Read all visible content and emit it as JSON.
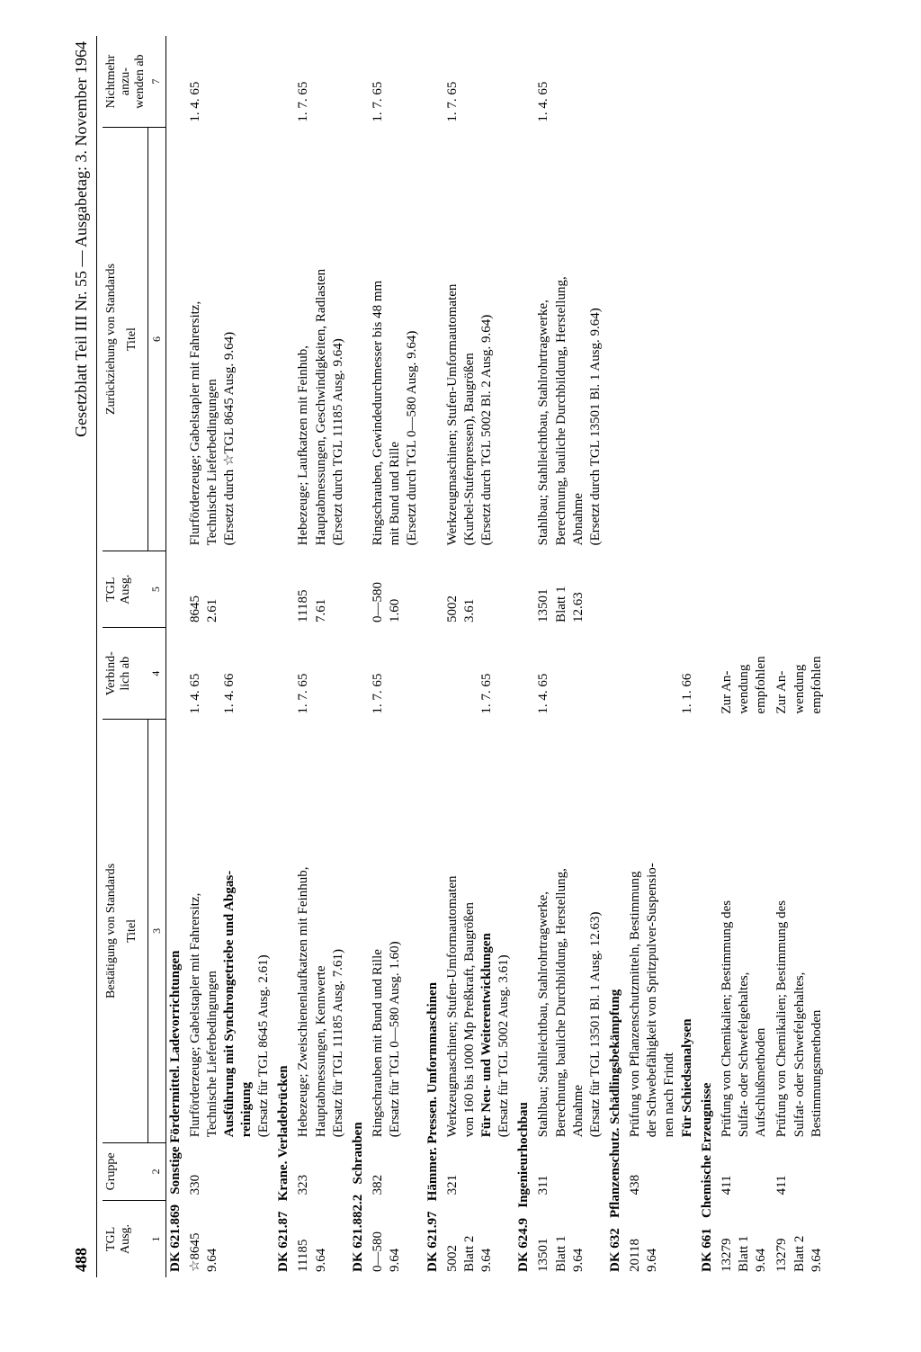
{
  "header": {
    "page_number": "488",
    "title": "Gesetzblatt Teil III Nr. 55 — Ausgabetag: 3. November 1964"
  },
  "thead": {
    "c1": "TGL\nAusg.",
    "c2": "Gruppe",
    "span_left": "Bestätigung von Standards",
    "c3": "Titel",
    "c4": "Verbind-\nlich ab",
    "c5": "TGL\nAusg.",
    "span_right": "Zurückziehung von Standards",
    "c6": "Titel",
    "c7": "Nichtmehr\nanzu-\nwenden ab",
    "nums": [
      "1",
      "2",
      "3",
      "4",
      "5",
      "6",
      "7"
    ]
  },
  "sections": [
    {
      "dk": "DK 621.869",
      "title": "Sonstige Fördermittel. Ladevorrichtungen",
      "entries": [
        {
          "tgl": "☆8645\n9.64",
          "gruppe": "330",
          "title_lines": [
            {
              "t": "Flurförderzeuge; Gabelstapler mit Fahrersitz,",
              "b": false
            },
            {
              "t": "Technische Lieferbedingungen",
              "b": false
            },
            {
              "t": "Ausführung mit Synchrongetriebe und Abgas-",
              "b": true
            },
            {
              "t": "reinigung",
              "b": true
            },
            {
              "t": "(Ersatz für TGL 8645 Ausg. 2.61)",
              "b": false
            }
          ],
          "verb": "1. 4. 65\n\n1. 4. 66",
          "ztgl": "8645\n2.61",
          "ztitle_lines": [
            {
              "t": "Flurförderzeuge; Gabelstapler mit Fahrersitz,",
              "b": false
            },
            {
              "t": "Technische Lieferbedingungen",
              "b": false
            },
            {
              "t": "(Ersetzt durch ☆TGL 8645 Ausg. 9.64)",
              "b": false
            }
          ],
          "nicht": "1. 4. 65"
        }
      ]
    },
    {
      "dk": "DK 621.87",
      "title": "Krane. Verladebrücken",
      "entries": [
        {
          "tgl": "11185\n9.64",
          "gruppe": "323",
          "title_lines": [
            {
              "t": "Hebezeuge; Zweischienenlaufkatzen mit Feinhub,",
              "b": false
            },
            {
              "t": "Hauptabmessungen, Kennwerte",
              "b": false
            },
            {
              "t": "(Ersatz für TGL 11185 Ausg. 7.61)",
              "b": false
            }
          ],
          "verb": "1. 7. 65",
          "ztgl": "11185\n7.61",
          "ztitle_lines": [
            {
              "t": "Hebezeuge; Laufkatzen mit Feinhub,",
              "b": false
            },
            {
              "t": "Hauptabmessungen, Geschwindigkeiten, Radlasten",
              "b": false
            },
            {
              "t": "(Ersetzt durch TGL 11185 Ausg. 9.64)",
              "b": false
            }
          ],
          "nicht": "1. 7. 65"
        }
      ]
    },
    {
      "dk": "DK 621.882.2",
      "title": "Schrauben",
      "entries": [
        {
          "tgl": "0—580\n9.64",
          "gruppe": "382",
          "title_lines": [
            {
              "t": "Ringschrauben mit Bund und Rille",
              "b": false
            },
            {
              "t": "(Ersatz für TGL 0—580 Ausg. 1.60)",
              "b": false
            }
          ],
          "verb": "1. 7. 65",
          "ztgl": "0—580\n1.60",
          "ztitle_lines": [
            {
              "t": "Ringschrauben, Gewindedurchmesser bis 48 mm",
              "b": false
            },
            {
              "t": "mit Bund und Rille",
              "b": false
            },
            {
              "t": "(Ersetzt durch TGL 0—580 Ausg. 9.64)",
              "b": false
            }
          ],
          "nicht": "1. 7. 65"
        }
      ]
    },
    {
      "dk": "DK 621.97",
      "title": "Hämmer. Pressen. Umformmaschinen",
      "entries": [
        {
          "tgl": "5002\nBlatt 2\n9.64",
          "gruppe": "321",
          "title_lines": [
            {
              "t": "Werkzeugmaschinen; Stufen-Umformautomaten",
              "b": false
            },
            {
              "t": "von 160 bis 1000 Mp Preßkraft, Baugrößen",
              "b": false
            },
            {
              "t": "Für Neu- und Weiterentwicklungen",
              "b": true
            },
            {
              "t": "(Ersatz für TGL 5002 Ausg. 3.61)",
              "b": false
            }
          ],
          "verb": "\n\n1. 7. 65",
          "ztgl": "5002\n3.61",
          "ztitle_lines": [
            {
              "t": "Werkzeugmaschinen; Stufen-Umformautomaten",
              "b": false
            },
            {
              "t": "(Kurbel-Stufenpressen), Baugrößen",
              "b": false
            },
            {
              "t": "(Ersetzt durch TGL 5002 Bl. 2 Ausg. 9.64)",
              "b": false
            }
          ],
          "nicht": "1. 7. 65"
        }
      ]
    },
    {
      "dk": "DK 624.9",
      "title": "Ingenieurhochbau",
      "entries": [
        {
          "tgl": "13501\nBlatt 1\n9.64",
          "gruppe": "311",
          "title_lines": [
            {
              "t": "Stahlbau; Stahlleichtbau, Stahlrohrtragwerke,",
              "b": false
            },
            {
              "t": "Berechnung, bauliche Durchbildung, Herstellung,",
              "b": false
            },
            {
              "t": "Abnahme",
              "b": false
            },
            {
              "t": "(Ersatz für TGL 13501 Bl. 1 Ausg. 12.63)",
              "b": false
            }
          ],
          "verb": "1. 4. 65",
          "ztgl": "13501\nBlatt 1\n12.63",
          "ztitle_lines": [
            {
              "t": "Stahlbau; Stahlleichtbau, Stahlrohrtragwerke,",
              "b": false
            },
            {
              "t": "Berechnung, bauliche Durchbildung, Herstellung,",
              "b": false
            },
            {
              "t": "Abnahme",
              "b": false
            },
            {
              "t": "(Ersetzt durch TGL 13501 Bl. 1 Ausg. 9.64)",
              "b": false
            }
          ],
          "nicht": "1. 4. 65"
        }
      ]
    },
    {
      "dk": "DK 632",
      "title": "Pflanzenschutz. Schädlingsbekämpfung",
      "entries": [
        {
          "tgl": "20118\n9.64",
          "gruppe": "438",
          "title_lines": [
            {
              "t": "Prüfung von Pflanzenschutzmitteln, Bestimmung",
              "b": false
            },
            {
              "t": "der Schwebefähigkeit von Spritzpulver-Suspensio-",
              "b": false
            },
            {
              "t": "nen nach Frindt",
              "b": false
            },
            {
              "t": "Für Schiedsanalysen",
              "b": true
            }
          ],
          "verb": "\n\n\n1. 1. 66",
          "ztgl": "",
          "ztitle_lines": [],
          "nicht": ""
        }
      ]
    },
    {
      "dk": "DK 661",
      "title": "Chemische Erzeugnisse",
      "entries": [
        {
          "tgl": "13279\nBlatt 1\n9.64",
          "gruppe": "411",
          "title_lines": [
            {
              "t": "Prüfung von Chemikalien; Bestimmung des",
              "b": false
            },
            {
              "t": "Sulfat- oder Schwefelgehaltes,",
              "b": false
            },
            {
              "t": "Aufschlußmethoden",
              "b": false
            }
          ],
          "verb": "Zur An-\nwendung\nempfohlen",
          "ztgl": "",
          "ztitle_lines": [],
          "nicht": ""
        },
        {
          "tgl": "13279\nBlatt 2\n9.64",
          "gruppe": "411",
          "title_lines": [
            {
              "t": "Prüfung von Chemikalien; Bestimmung des",
              "b": false
            },
            {
              "t": "Sulfat- oder Schwefelgehaltes,",
              "b": false
            },
            {
              "t": "Bestimmungsmethoden",
              "b": false
            }
          ],
          "verb": "Zur An-\nwendung\nempfohlen",
          "ztgl": "",
          "ztitle_lines": [],
          "nicht": ""
        }
      ]
    }
  ]
}
